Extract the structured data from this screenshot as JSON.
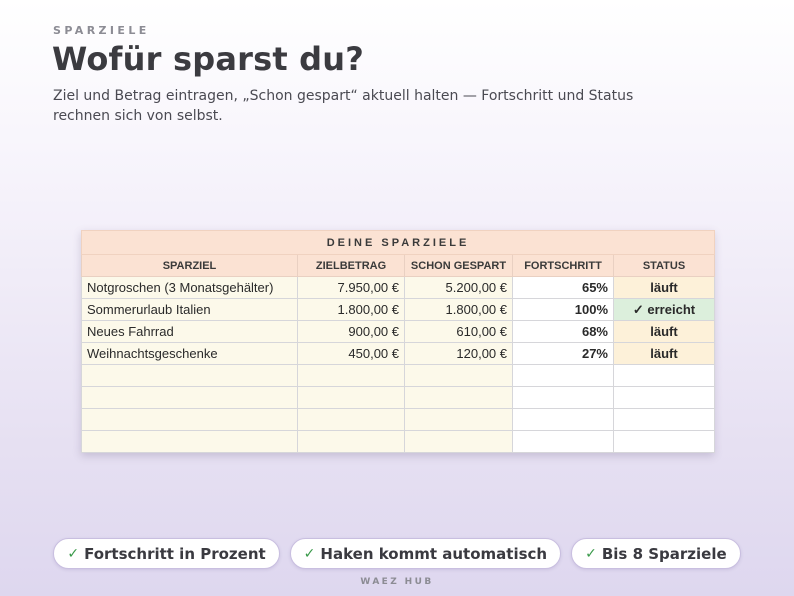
{
  "header": {
    "eyebrow": "SPARZIELE",
    "title": "Wofür sparst du?",
    "subtitle": "Ziel und Betrag eintragen, „Schon gespart“ aktuell halten — Fortschritt und Status rechnen sich von selbst."
  },
  "sheet": {
    "banner": "DEINE SPARZIELE",
    "columns": [
      "SPARZIEL",
      "ZIELBETRAG",
      "SCHON GESPART",
      "FORTSCHRITT",
      "STATUS"
    ],
    "rows": [
      {
        "goal": "Notgroschen (3 Monatsgehälter)",
        "target": "7.950,00 €",
        "saved": "5.200,00 €",
        "progress": "65%",
        "status": "läuft"
      },
      {
        "goal": "Sommerurlaub Italien",
        "target": "1.800,00 €",
        "saved": "1.800,00 €",
        "progress": "100%",
        "status": "✓ erreicht"
      },
      {
        "goal": "Neues Fahrrad",
        "target": "900,00 €",
        "saved": "610,00 €",
        "progress": "68%",
        "status": "läuft"
      },
      {
        "goal": "Weihnachtsgeschenke",
        "target": "450,00 €",
        "saved": "120,00 €",
        "progress": "27%",
        "status": "läuft"
      }
    ],
    "colors": {
      "header": "#fbe2d3",
      "input": "#fcf9ea",
      "running": "#fdf1d9",
      "reached": "#dcefdc"
    }
  },
  "pills": [
    {
      "icon": "check-icon",
      "label": "Fortschritt in Prozent"
    },
    {
      "icon": "check-icon",
      "label": "Haken kommt automatisch"
    },
    {
      "icon": "check-icon",
      "label": "Bis 8 Sparziele"
    }
  ],
  "footer": "WAEZ HUB"
}
